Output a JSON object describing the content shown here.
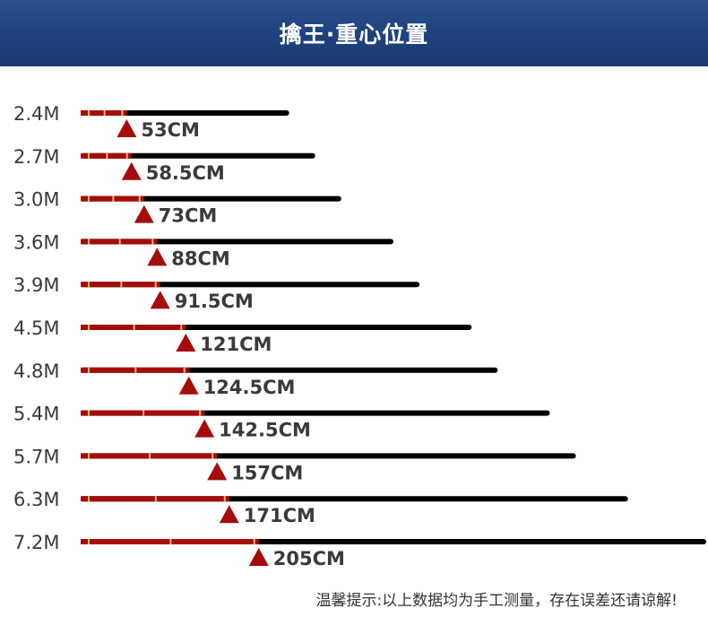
{
  "header": {
    "title": "擒王·重心位置"
  },
  "chart_data": {
    "type": "bar",
    "categories": [
      "2.4M",
      "2.7M",
      "3.0M",
      "3.6M",
      "3.9M",
      "4.5M",
      "4.8M",
      "5.4M",
      "5.7M",
      "6.3M",
      "7.2M"
    ],
    "rod_length_m": [
      2.4,
      2.7,
      3.0,
      3.6,
      3.9,
      4.5,
      4.8,
      5.4,
      5.7,
      6.3,
      7.2
    ],
    "balance_point_cm": [
      53,
      58.5,
      73,
      88,
      91.5,
      121,
      124.5,
      142.5,
      157,
      171,
      205
    ],
    "balance_labels": [
      "53CM",
      "58.5CM",
      "73CM",
      "88CM",
      "91.5CM",
      "121CM",
      "124.5CM",
      "142.5CM",
      "157CM",
      "171CM",
      "205CM"
    ],
    "colors": {
      "rod": "#000000",
      "grip": "#a50c0c",
      "ring": "#e0b860",
      "marker": "#a50c0c",
      "label": "#3a3a3a"
    }
  },
  "footer": {
    "note": "温馨提示:以上数据均为手工测量，存在误差还请谅解!"
  }
}
